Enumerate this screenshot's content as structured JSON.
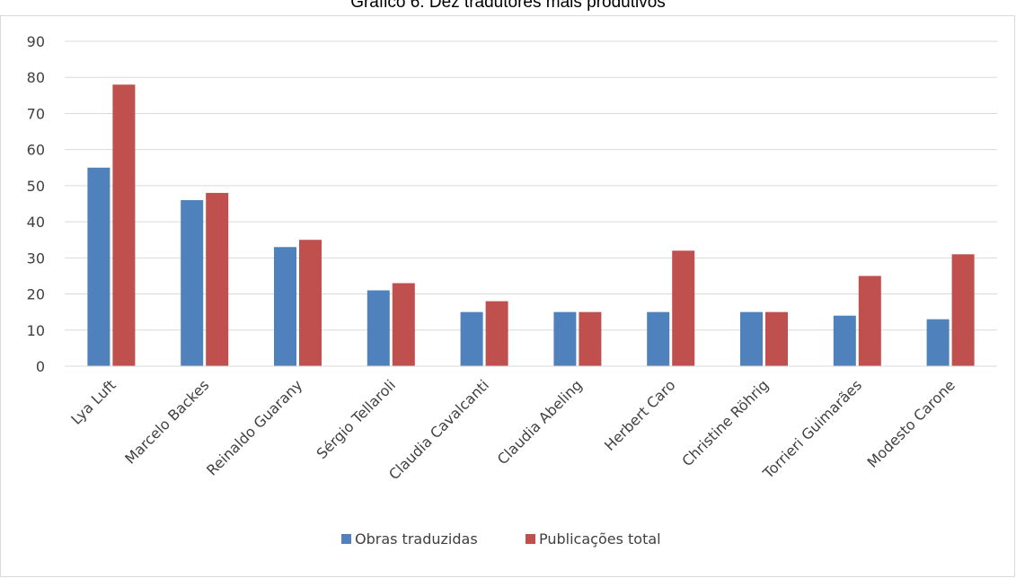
{
  "chart_data": {
    "type": "bar",
    "title": "Gráfico 6: Dez tradutores mais produtivos",
    "xlabel": "",
    "ylabel": "",
    "ylim": [
      0,
      90
    ],
    "yticks": [
      0,
      10,
      20,
      30,
      40,
      50,
      60,
      70,
      80,
      90
    ],
    "grid": true,
    "legend_position": "bottom",
    "categories": [
      "Lya Luft",
      "Marcelo Backes",
      "Reinaldo Guarany",
      "Sérgio Tellaroli",
      "Claudia Cavalcanti",
      "Claudia Abeling",
      "Herbert Caro",
      "Christine Röhrig",
      "Torrieri Guimarães",
      "Modesto Carone"
    ],
    "series": [
      {
        "name": "Obras traduzidas",
        "color": "#4f81bd",
        "values": [
          55,
          46,
          33,
          21,
          15,
          15,
          15,
          15,
          14,
          13
        ]
      },
      {
        "name": "Publicações total",
        "color": "#c0504d",
        "values": [
          78,
          48,
          35,
          23,
          18,
          15,
          32,
          15,
          25,
          31
        ]
      }
    ]
  }
}
